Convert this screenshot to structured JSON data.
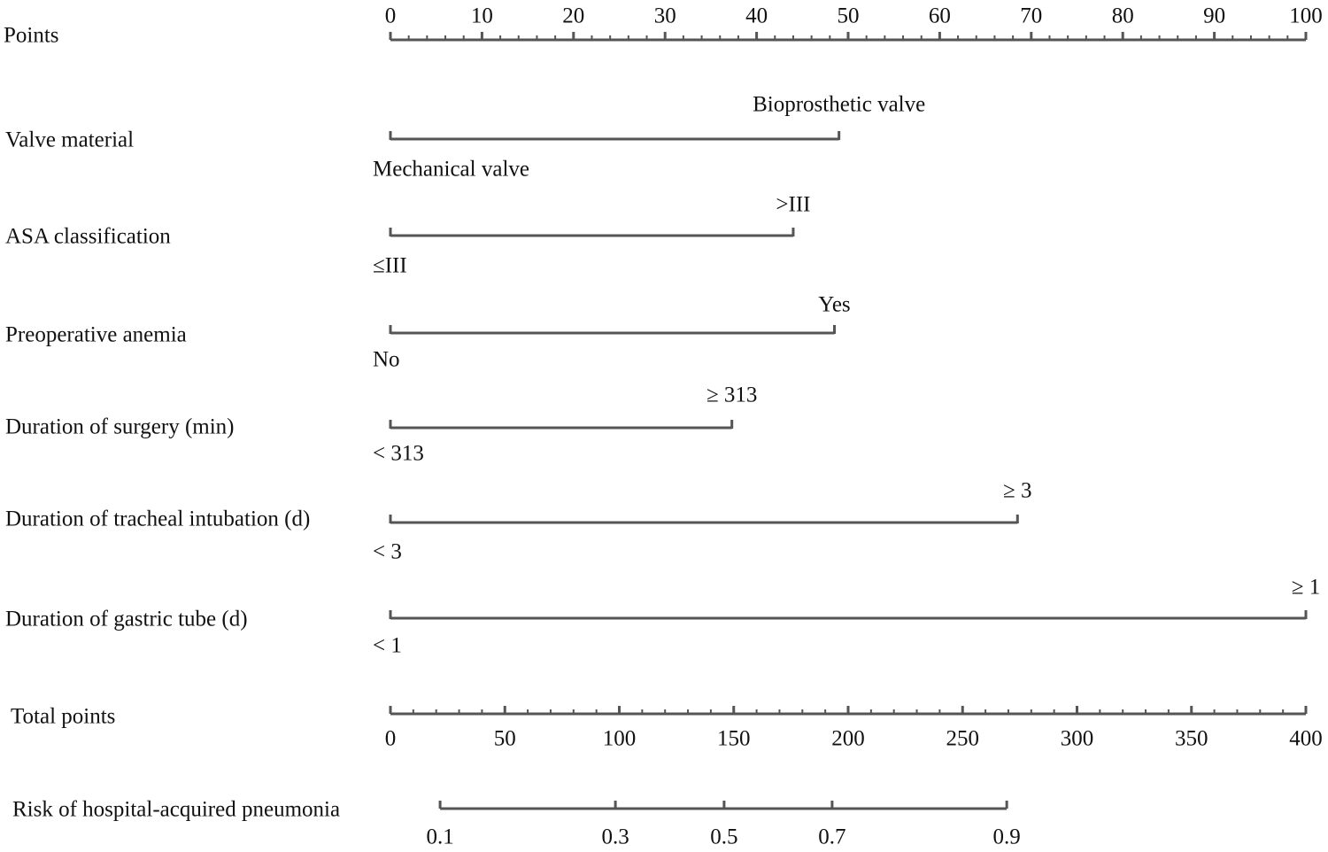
{
  "chart_data": {
    "type": "nomogram",
    "points_axis": {
      "label": "Points",
      "xlim": [
        0,
        100
      ],
      "xticks": [
        0,
        10,
        20,
        30,
        40,
        50,
        60,
        70,
        80,
        90,
        100
      ]
    },
    "variables": [
      {
        "label": "Valve material",
        "levels": [
          {
            "label": "Mechanical valve",
            "points": 0
          },
          {
            "label": "Bioprosthetic valve",
            "points": 49
          }
        ]
      },
      {
        "label": "ASA classification",
        "levels": [
          {
            "label": "≤III",
            "points": 0
          },
          {
            "label": ">III",
            "points": 44
          }
        ]
      },
      {
        "label": "Preoperative anemia",
        "levels": [
          {
            "label": "No",
            "points": 0
          },
          {
            "label": "Yes",
            "points": 48.5
          }
        ]
      },
      {
        "label": "Duration of surgery (min)",
        "levels": [
          {
            "label": "< 313",
            "points": 0
          },
          {
            "label": "≥ 313",
            "points": 37.3
          }
        ]
      },
      {
        "label": "Duration of tracheal intubation (d)",
        "levels": [
          {
            "label": "< 3",
            "points": 0
          },
          {
            "label": "≥ 3",
            "points": 68.5
          }
        ]
      },
      {
        "label": "Duration of gastric tube (d)",
        "levels": [
          {
            "label": "< 1",
            "points": 0
          },
          {
            "label": "≥ 1",
            "points": 100
          }
        ]
      }
    ],
    "total_axis": {
      "label": "Total points",
      "xlim": [
        0,
        400
      ],
      "xticks": [
        0,
        50,
        100,
        150,
        200,
        250,
        300,
        350,
        400
      ]
    },
    "risk_axis": {
      "label": "Risk of hospital-acquired pneumonia",
      "ticks": [
        0.1,
        0.3,
        0.5,
        0.7,
        0.9
      ],
      "total_points": [
        21.7,
        98.3,
        145.8,
        193.0,
        269.3
      ]
    },
    "color": "#555555"
  }
}
